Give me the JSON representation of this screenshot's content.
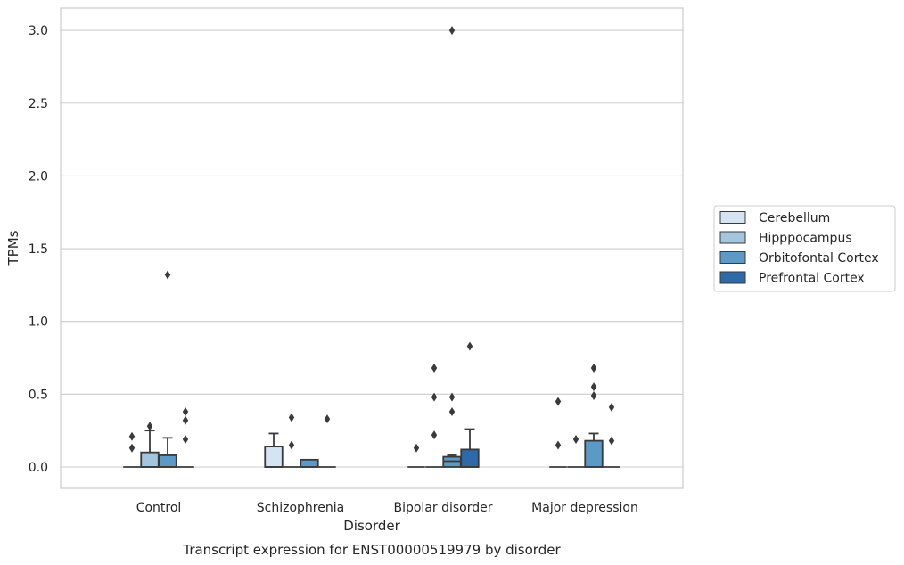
{
  "chart_data": {
    "type": "box",
    "caption": "Transcript expression for ENST00000519979 by disorder",
    "xlabel": "Disorder",
    "ylabel": "TPMs",
    "ylim": [
      -0.15,
      3.15
    ],
    "yticks": [
      "0.0",
      "0.5",
      "1.0",
      "1.5",
      "2.0",
      "2.5",
      "3.0"
    ],
    "grid": "horizontal",
    "legend_position": "right",
    "categories": [
      "Control",
      "Schizophrenia",
      "Bipolar disorder",
      "Major depression"
    ],
    "series": [
      {
        "name": "Cerebellum",
        "color": "#d5e4f3",
        "boxes": [
          {
            "q1": 0.0,
            "median": 0.0,
            "q3": 0.0,
            "whisker_low": 0.0,
            "whisker_high": 0.0,
            "outliers": [
              0.13,
              0.21
            ]
          },
          {
            "q1": 0.0,
            "median": 0.0,
            "q3": 0.14,
            "whisker_low": 0.0,
            "whisker_high": 0.23,
            "outliers": []
          },
          {
            "q1": 0.0,
            "median": 0.0,
            "q3": 0.0,
            "whisker_low": 0.0,
            "whisker_high": 0.0,
            "outliers": [
              0.13
            ]
          },
          {
            "q1": 0.0,
            "median": 0.0,
            "q3": 0.0,
            "whisker_low": 0.0,
            "whisker_high": 0.0,
            "outliers": [
              0.15,
              0.45
            ]
          }
        ]
      },
      {
        "name": "Hipppocampus",
        "color": "#a3c5de",
        "boxes": [
          {
            "q1": 0.0,
            "median": 0.0,
            "q3": 0.1,
            "whisker_low": 0.0,
            "whisker_high": 0.25,
            "outliers": [
              0.28
            ]
          },
          {
            "q1": 0.0,
            "median": 0.0,
            "q3": 0.0,
            "whisker_low": 0.0,
            "whisker_high": 0.0,
            "outliers": [
              0.15,
              0.34
            ]
          },
          {
            "q1": 0.0,
            "median": 0.0,
            "q3": 0.0,
            "whisker_low": 0.0,
            "whisker_high": 0.0,
            "outliers": [
              0.22,
              0.48,
              0.68
            ]
          },
          {
            "q1": 0.0,
            "median": 0.0,
            "q3": 0.0,
            "whisker_low": 0.0,
            "whisker_high": 0.0,
            "outliers": [
              0.19
            ]
          }
        ]
      },
      {
        "name": "Orbitofontal Cortex",
        "color": "#5b9ac7",
        "boxes": [
          {
            "q1": 0.0,
            "median": 0.0,
            "q3": 0.08,
            "whisker_low": 0.0,
            "whisker_high": 0.2,
            "outliers": [
              1.32
            ]
          },
          {
            "q1": 0.0,
            "median": 0.0,
            "q3": 0.05,
            "whisker_low": 0.0,
            "whisker_high": 0.05,
            "outliers": []
          },
          {
            "q1": 0.0,
            "median": 0.04,
            "q3": 0.07,
            "whisker_low": 0.0,
            "whisker_high": 0.08,
            "outliers": [
              0.38,
              0.48,
              3.0
            ]
          },
          {
            "q1": 0.0,
            "median": 0.0,
            "q3": 0.18,
            "whisker_low": 0.0,
            "whisker_high": 0.23,
            "outliers": [
              0.49,
              0.55,
              0.68
            ]
          }
        ]
      },
      {
        "name": "Prefrontal Cortex",
        "color": "#2f6aa8",
        "boxes": [
          {
            "q1": 0.0,
            "median": 0.0,
            "q3": 0.0,
            "whisker_low": 0.0,
            "whisker_high": 0.0,
            "outliers": [
              0.19,
              0.32,
              0.38
            ]
          },
          {
            "q1": 0.0,
            "median": 0.0,
            "q3": 0.0,
            "whisker_low": 0.0,
            "whisker_high": 0.0,
            "outliers": [
              0.33
            ]
          },
          {
            "q1": 0.0,
            "median": 0.0,
            "q3": 0.12,
            "whisker_low": 0.0,
            "whisker_high": 0.26,
            "outliers": [
              0.83
            ]
          },
          {
            "q1": 0.0,
            "median": 0.0,
            "q3": 0.0,
            "whisker_low": 0.0,
            "whisker_high": 0.0,
            "outliers": [
              0.18,
              0.41
            ]
          }
        ]
      }
    ]
  }
}
